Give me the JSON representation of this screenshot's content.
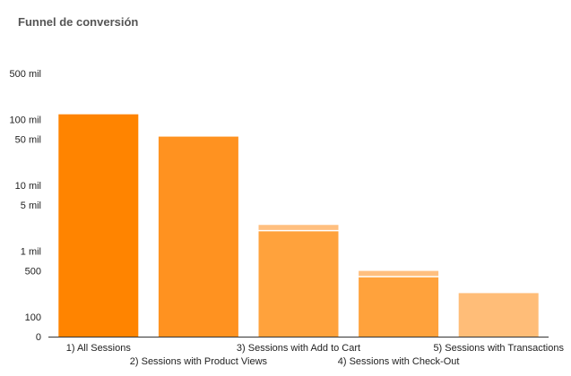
{
  "chart_data": {
    "type": "bar",
    "title": "Funnel de conversión",
    "xlabel": "",
    "ylabel": "",
    "y_scale": "log",
    "ylim": [
      0,
      1500000
    ],
    "y_ticks": [
      {
        "value": 0,
        "label": "0"
      },
      {
        "value": 100,
        "label": "100"
      },
      {
        "value": 500,
        "label": "500"
      },
      {
        "value": 1000,
        "label": "1 mil"
      },
      {
        "value": 5000,
        "label": "5 mil"
      },
      {
        "value": 10000,
        "label": "10 mil"
      },
      {
        "value": 50000,
        "label": "50 mil"
      },
      {
        "value": 100000,
        "label": "100 mil"
      },
      {
        "value": 500000,
        "label": "500 mil"
      }
    ],
    "categories": [
      "1) All Sessions",
      "2) Sessions with Product Views",
      "3) Sessions with Add to Cart",
      "4) Sessions with Check-Out",
      "5) Sessions with Transactions"
    ],
    "values": [
      120000,
      55000,
      2000,
      400,
      230
    ],
    "stacked_extra": [
      0,
      0,
      500,
      100,
      0
    ],
    "colors": [
      "#ff8400",
      "#ff9220",
      "#ffa23c",
      "#ffa23c",
      "#ffbd78"
    ],
    "extra_color": "#ffbf7f",
    "grid": false,
    "legend": "none"
  }
}
